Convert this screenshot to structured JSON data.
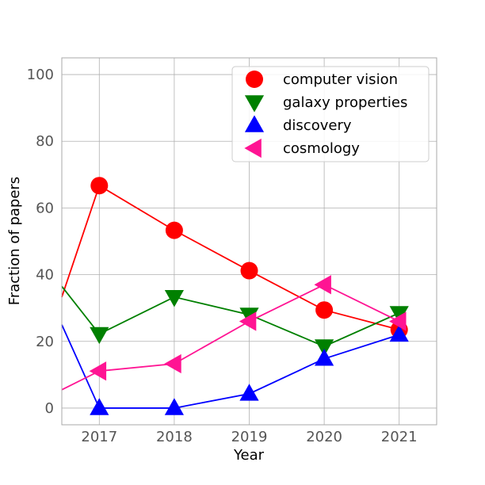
{
  "chart_data": {
    "type": "line",
    "title": "",
    "xlabel": "Year",
    "ylabel": "Fraction of papers",
    "x": [
      2017,
      2018,
      2019,
      2020,
      2021
    ],
    "xlim": [
      2016.5,
      2021.5
    ],
    "ylim": [
      -5,
      105
    ],
    "x_ticks": [
      "2017",
      "2018",
      "2019",
      "2020",
      "2021"
    ],
    "y_ticks": [
      "0",
      "20",
      "40",
      "60",
      "80",
      "100"
    ],
    "grid": true,
    "legend_position": "top-right",
    "series": [
      {
        "name": "computer vision",
        "color": "#ff0000",
        "marker": "circle",
        "line_start": 33.3,
        "values": [
          66.7,
          53.3,
          41.2,
          29.4,
          23.5
        ]
      },
      {
        "name": "galaxy properties",
        "color": "#008000",
        "marker": "triangle-down",
        "line_start": 36.5,
        "values": [
          22.2,
          33.3,
          28.0,
          18.5,
          28.5
        ]
      },
      {
        "name": "discovery",
        "color": "#0000ff",
        "marker": "triangle-up",
        "line_start": 25.0,
        "values": [
          0,
          0,
          4.3,
          14.8,
          22.0
        ]
      },
      {
        "name": "cosmology",
        "color": "#ff1493",
        "marker": "triangle-left",
        "line_start": 5.5,
        "values": [
          11.1,
          13.3,
          26.0,
          37.0,
          26.0
        ]
      }
    ]
  }
}
